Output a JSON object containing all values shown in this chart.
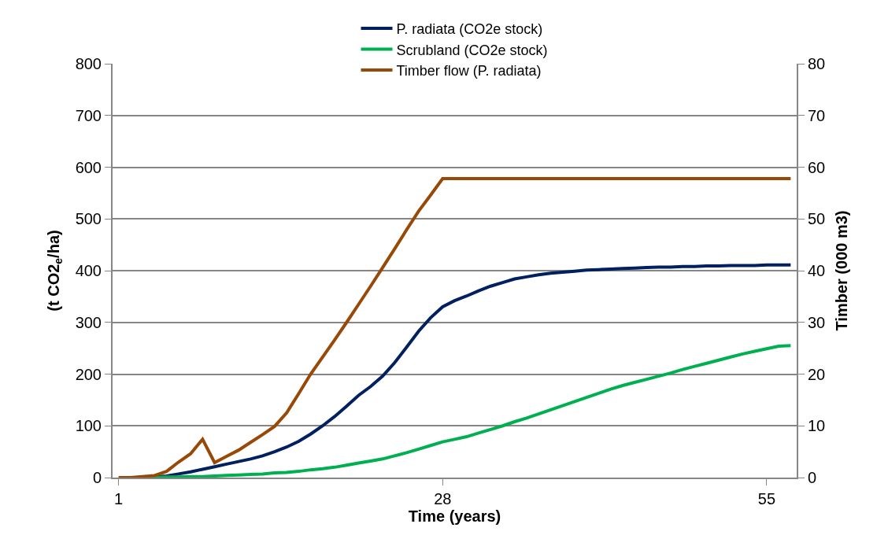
{
  "chart_data": {
    "type": "line",
    "xlabel": "Time (years)",
    "ylabel": "(t CO2$_{e}$/ha)",
    "y2label": "Timber (000 m3)",
    "x": [
      1,
      2,
      3,
      4,
      5,
      6,
      7,
      8,
      9,
      10,
      11,
      12,
      13,
      14,
      15,
      16,
      17,
      18,
      19,
      20,
      21,
      22,
      23,
      24,
      25,
      26,
      27,
      28,
      29,
      30,
      31,
      32,
      33,
      34,
      35,
      36,
      37,
      38,
      39,
      40,
      41,
      42,
      43,
      44,
      45,
      46,
      47,
      48,
      49,
      50,
      51,
      52,
      53,
      54,
      55,
      56,
      57
    ],
    "xlim": [
      0.5,
      57.5
    ],
    "xticks": [
      1,
      28,
      55
    ],
    "ylim": [
      0,
      800
    ],
    "yticks": [
      0,
      100,
      200,
      300,
      400,
      500,
      600,
      700,
      800
    ],
    "y2lim": [
      0,
      80
    ],
    "y2ticks": [
      0,
      10,
      20,
      30,
      40,
      50,
      60,
      70,
      80
    ],
    "grid": "y",
    "legend": "top",
    "marker": "none",
    "line_style": "solid",
    "series": [
      {
        "name": "P. radiata (CO2e stock)",
        "color": "#002060",
        "values": [
          null,
          null,
          0,
          1,
          3,
          7,
          11,
          16,
          21,
          26,
          31,
          36,
          42,
          50,
          59,
          70,
          84,
          100,
          118,
          138,
          159,
          176,
          196,
          222,
          252,
          283,
          309,
          330,
          342,
          351,
          361,
          370,
          377,
          384,
          388,
          392,
          395,
          397,
          399,
          401,
          402,
          403,
          404,
          405,
          406,
          407,
          407,
          408,
          408,
          409,
          409,
          410,
          410,
          410,
          411,
          411,
          411
        ]
      },
      {
        "name": "Scrubland (CO2e stock)",
        "color": "#00b050",
        "values": [
          null,
          null,
          0,
          0,
          1,
          1,
          2,
          2,
          3,
          4,
          5,
          6,
          7,
          9,
          10,
          12,
          15,
          17,
          20,
          24,
          28,
          32,
          36,
          42,
          48,
          55,
          62,
          69,
          74,
          79,
          86,
          93,
          100,
          108,
          115,
          123,
          131,
          139,
          147,
          155,
          163,
          171,
          178,
          184,
          190,
          196,
          202,
          209,
          215,
          221,
          227,
          233,
          239,
          244,
          249,
          254,
          255
        ]
      },
      {
        "name": "Timber flow (P. radiata)",
        "color": "#984807",
        "axis": "y2",
        "values": [
          0,
          0,
          0.2,
          0.4,
          1.2,
          3.0,
          4.6,
          7.4,
          2.9,
          4.1,
          5.3,
          6.8,
          8.3,
          9.9,
          12.5,
          16.2,
          20.0,
          23.3,
          26.6,
          30.0,
          33.5,
          37.0,
          40.6,
          44.2,
          47.9,
          51.5,
          54.6,
          57.8,
          57.8,
          57.8,
          57.8,
          57.8,
          57.8,
          57.8,
          57.8,
          57.8,
          57.8,
          57.8,
          57.8,
          57.8,
          57.8,
          57.8,
          57.8,
          57.8,
          57.8,
          57.8,
          57.8,
          57.8,
          57.8,
          57.8,
          57.8,
          57.8,
          57.8,
          57.8,
          57.8,
          57.8,
          57.8
        ]
      }
    ]
  }
}
